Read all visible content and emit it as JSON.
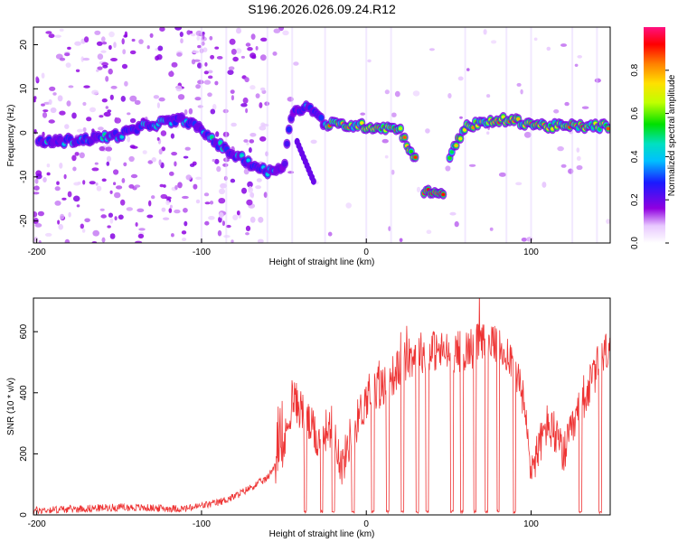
{
  "title": "S196.2026.026.09.24.R12",
  "colorbar": {
    "label": "Normalized spectral amplitude",
    "ticks": [
      "0.0",
      "0.2",
      "0.4",
      "0.6",
      "0.8"
    ],
    "range": [
      0,
      1
    ]
  },
  "chart_data": [
    {
      "type": "heatmap",
      "xlabel": "Height of straight line (km)",
      "ylabel": "Frequency (Hz)",
      "xlim": [
        -202,
        148
      ],
      "ylim": [
        -25,
        24
      ],
      "xticks": [
        -200,
        -100,
        0,
        100
      ],
      "yticks": [
        -20,
        -10,
        0,
        10,
        20
      ],
      "grid": false,
      "ridge": [
        {
          "x": -190,
          "y": -2
        },
        {
          "x": -170,
          "y": -1.5
        },
        {
          "x": -150,
          "y": -0.5
        },
        {
          "x": -130,
          "y": 2
        },
        {
          "x": -110,
          "y": 3
        },
        {
          "x": -100,
          "y": 0.5
        },
        {
          "x": -85,
          "y": -4
        },
        {
          "x": -70,
          "y": -7
        },
        {
          "x": -60,
          "y": -9
        },
        {
          "x": -50,
          "y": -7.5
        },
        {
          "x": -45,
          "y": 5
        },
        {
          "x": -35,
          "y": 6
        },
        {
          "x": -25,
          "y": 2
        },
        {
          "x": 0,
          "y": 1.5
        },
        {
          "x": 20,
          "y": 1
        },
        {
          "x": 40,
          "y": -13.5
        },
        {
          "x": 60,
          "y": 1.5
        },
        {
          "x": 85,
          "y": 3
        },
        {
          "x": 110,
          "y": 1.5
        },
        {
          "x": 145,
          "y": 1.5
        }
      ]
    },
    {
      "type": "line",
      "xlabel": "Height of straight line (km)",
      "ylabel": "SNR (10 * v/v)",
      "xlim": [
        -202,
        148
      ],
      "ylim": [
        0,
        710
      ],
      "xticks": [
        -200,
        -100,
        0,
        100
      ],
      "yticks": [
        0,
        200,
        400,
        600
      ],
      "grid": false,
      "series": [
        {
          "color": "#ee3333",
          "x": [
            -200,
            -150,
            -110,
            -100,
            -90,
            -80,
            -70,
            -60,
            -50,
            -45,
            -40,
            -30,
            -20,
            -15,
            -10,
            0,
            10,
            20,
            30,
            40,
            50,
            60,
            70,
            80,
            90,
            95,
            100,
            110,
            120,
            130,
            140,
            148
          ],
          "y": [
            15,
            25,
            20,
            30,
            40,
            60,
            90,
            120,
            220,
            380,
            350,
            250,
            300,
            150,
            250,
            380,
            420,
            480,
            530,
            540,
            530,
            540,
            560,
            550,
            500,
            380,
            150,
            300,
            200,
            350,
            480,
            560
          ]
        }
      ]
    }
  ]
}
